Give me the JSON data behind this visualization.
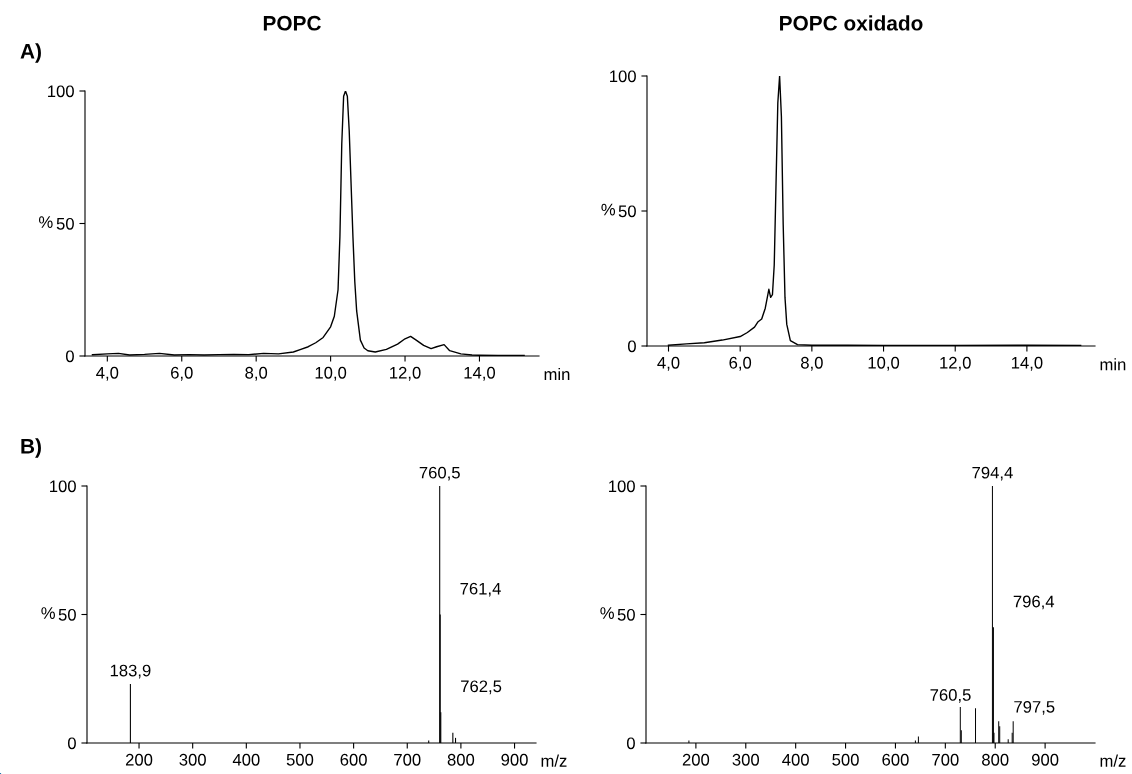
{
  "chart_data": [
    {
      "type": "line",
      "title": "POPC",
      "ylabel": "%",
      "xlabel": "min",
      "annotations": [
        "A)"
      ],
      "x": [
        3.6,
        4.0,
        4.3,
        4.6,
        5.0,
        5.4,
        5.8,
        6.2,
        6.6,
        7.0,
        7.4,
        7.8,
        8.2,
        8.6,
        9.0,
        9.2,
        9.4,
        9.6,
        9.8,
        10.0,
        10.1,
        10.2,
        10.25,
        10.3,
        10.35,
        10.4,
        10.45,
        10.5,
        10.55,
        10.6,
        10.65,
        10.7,
        10.8,
        10.9,
        11.0,
        11.2,
        11.5,
        11.8,
        12.0,
        12.15,
        12.3,
        12.5,
        12.7,
        12.85,
        13.05,
        13.2,
        13.5,
        13.8,
        14.0,
        14.5,
        15.0,
        15.2
      ],
      "values": [
        0.5,
        0.8,
        1.0,
        0.4,
        0.6,
        1.0,
        0.4,
        0.5,
        0.4,
        0.5,
        0.6,
        0.5,
        1.0,
        0.8,
        1.5,
        2.5,
        3.5,
        5,
        7,
        11,
        15,
        25,
        45,
        80,
        98,
        100,
        98,
        85,
        65,
        45,
        28,
        17,
        6,
        3,
        2,
        1.5,
        2.5,
        4.5,
        6.5,
        7.4,
        6,
        4,
        2.8,
        3.5,
        4.3,
        2,
        0.8,
        0.4,
        0.3,
        0.2,
        0.2,
        0.2
      ],
      "color": "#000000",
      "xlim": [
        3.4,
        15.6
      ],
      "ylim": [
        0,
        100
      ],
      "xticks": [
        {
          "value": 4,
          "label": "4,0"
        },
        {
          "value": 6,
          "label": "6,0"
        },
        {
          "value": 8,
          "label": "8,0"
        },
        {
          "value": 10,
          "label": "10,0"
        },
        {
          "value": 12,
          "label": "12,0"
        },
        {
          "value": 14,
          "label": "14,0"
        }
      ],
      "yticks": [
        0,
        50,
        100
      ]
    },
    {
      "type": "line",
      "title": "POPC oxidado",
      "ylabel": "%",
      "xlabel": "min",
      "x": [
        4.0,
        4.5,
        5.0,
        5.5,
        6.0,
        6.2,
        6.4,
        6.5,
        6.6,
        6.7,
        6.8,
        6.85,
        6.9,
        6.95,
        7.0,
        7.05,
        7.1,
        7.15,
        7.2,
        7.25,
        7.3,
        7.4,
        7.6,
        8.0,
        9.0,
        10.0,
        12.0,
        14.0,
        15.5
      ],
      "values": [
        0.3,
        0.8,
        1.2,
        2.2,
        3.5,
        5,
        7,
        9,
        10,
        14,
        21,
        18,
        19,
        30,
        60,
        90,
        100,
        85,
        45,
        18,
        8,
        2,
        0.5,
        0.3,
        0.3,
        0.2,
        0.2,
        0.3,
        0.2
      ],
      "color": "#000000",
      "xlim": [
        3.4,
        15.9
      ],
      "ylim": [
        0,
        100
      ],
      "xticks": [
        {
          "value": 4,
          "label": "4,0"
        },
        {
          "value": 6,
          "label": "6,0"
        },
        {
          "value": 8,
          "label": "8,0"
        },
        {
          "value": 10,
          "label": "10,0"
        },
        {
          "value": 12,
          "label": "12,0"
        },
        {
          "value": 14,
          "label": "14,0"
        }
      ],
      "yticks": [
        0,
        50,
        100
      ]
    },
    {
      "type": "bar",
      "ylabel": "%",
      "xlabel": "m/z",
      "annotations": [
        "B)",
        {
          "text": "183,9",
          "x": 183.9,
          "y": 23
        },
        {
          "text": "760,5",
          "x": 760.5,
          "y": 100
        },
        {
          "text": "761,4",
          "x": 761.4,
          "y": 50
        },
        {
          "text": "762,5",
          "x": 762.5,
          "y": 12
        }
      ],
      "x": [
        183.9,
        740,
        760.5,
        761.4,
        762.5,
        785,
        790
      ],
      "values": [
        23,
        1,
        100,
        50,
        12,
        4,
        2
      ],
      "color": "#000000",
      "xlim": [
        103,
        940
      ],
      "ylim": [
        0,
        100
      ],
      "xticks": [
        200,
        300,
        400,
        500,
        600,
        700,
        800,
        900
      ],
      "yticks": [
        0,
        50,
        100
      ]
    },
    {
      "type": "bar",
      "ylabel": "%",
      "xlabel": "m/z",
      "annotations": [
        {
          "text": "794,4",
          "x": 794.4,
          "y": 100
        },
        {
          "text": "796,4",
          "x": 796.4,
          "y": 45
        },
        {
          "text": "797,5",
          "x": 797.5,
          "y": 4
        },
        {
          "text": "760,5",
          "x": 760.5,
          "y": 13.5
        }
      ],
      "x": [
        186,
        640,
        646,
        730,
        732,
        760.5,
        794.4,
        796.4,
        797.5,
        807,
        809,
        826,
        834,
        836
      ],
      "values": [
        1,
        1,
        2.5,
        14,
        5,
        13.5,
        100,
        45,
        4,
        8.5,
        6.5,
        1.5,
        4,
        8.5
      ],
      "color": "#000000",
      "xlim": [
        100,
        1000
      ],
      "ylim": [
        0,
        100
      ],
      "xticks": [
        200,
        300,
        400,
        500,
        600,
        700,
        800,
        900
      ],
      "yticks": [
        0,
        50,
        100
      ]
    }
  ]
}
